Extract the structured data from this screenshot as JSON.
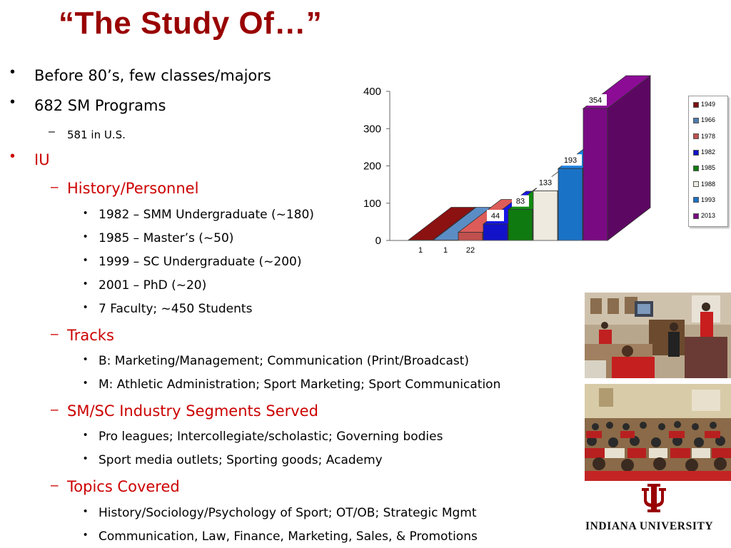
{
  "slide": {
    "title": "“The Study Of…”"
  },
  "bullets": [
    {
      "level": 1,
      "text": "Before 80’s, few classes/majors",
      "color": "#000000"
    },
    {
      "level": 1,
      "text": "682 SM Programs",
      "color": "#000000"
    },
    {
      "level": 2,
      "text": "581 in U.S.",
      "color": "#000000"
    },
    {
      "level": 1,
      "text": "IU",
      "color": "#cc0000"
    },
    {
      "level": 2,
      "text": "History/Personnel",
      "color": "#cc0000"
    },
    {
      "level": 3,
      "text": "1982 – SMM Undergraduate (~180)",
      "color": "#000000"
    },
    {
      "level": 3,
      "text": "1985 – Master’s (~50)",
      "color": "#000000"
    },
    {
      "level": 3,
      "text": "1999 – SC Undergraduate (~200)",
      "color": "#000000"
    },
    {
      "level": 3,
      "text": "2001 – PhD (~20)",
      "color": "#000000"
    },
    {
      "level": 3,
      "text": "7 Faculty; ~450 Students",
      "color": "#000000"
    },
    {
      "level": 2,
      "text": "Tracks",
      "color": "#cc0000"
    },
    {
      "level": 3,
      "text": "B: Marketing/Management; Communication (Print/Broadcast)",
      "color": "#000000"
    },
    {
      "level": 3,
      "text": "M: Athletic Administration; Sport Marketing; Sport Communication",
      "color": "#000000"
    },
    {
      "level": 2,
      "text": "SM/SC Industry Segments Served",
      "color": "#cc0000"
    },
    {
      "level": 3,
      "text": "Pro leagues; Intercollegiate/scholastic; Governing bodies",
      "color": "#000000"
    },
    {
      "level": 3,
      "text": "Sport media outlets; Sporting goods; Academy",
      "color": "#000000"
    },
    {
      "level": 2,
      "text": "Topics Covered",
      "color": "#cc0000"
    },
    {
      "level": 3,
      "text": "History/Sociology/Psychology of Sport; OT/OB; Strategic Mgmt",
      "color": "#000000"
    },
    {
      "level": 3,
      "text": "Communication, Law, Finance, Marketing, Sales, & Promotions",
      "color": "#000000"
    }
  ],
  "chart_data": {
    "type": "bar",
    "style": "3d",
    "categories": [
      "1949",
      "1966",
      "1978",
      "1982",
      "1985",
      "1988",
      "1993",
      "2013"
    ],
    "values": [
      1,
      1,
      22,
      44,
      83,
      133,
      193,
      354
    ],
    "colors": [
      "#7a0f0f",
      "#4f7bab",
      "#c0504d",
      "#1212c8",
      "#0f7a0f",
      "#eeeae0",
      "#1a72c6",
      "#7a0a82"
    ],
    "yticks": [
      "0",
      "100",
      "200",
      "300",
      "400"
    ],
    "ylim": [
      0,
      400
    ],
    "legend": "right",
    "grid": false
  },
  "footer": {
    "logo_text": "INDIANA UNIVERSITY",
    "brand_color": "#990000"
  }
}
